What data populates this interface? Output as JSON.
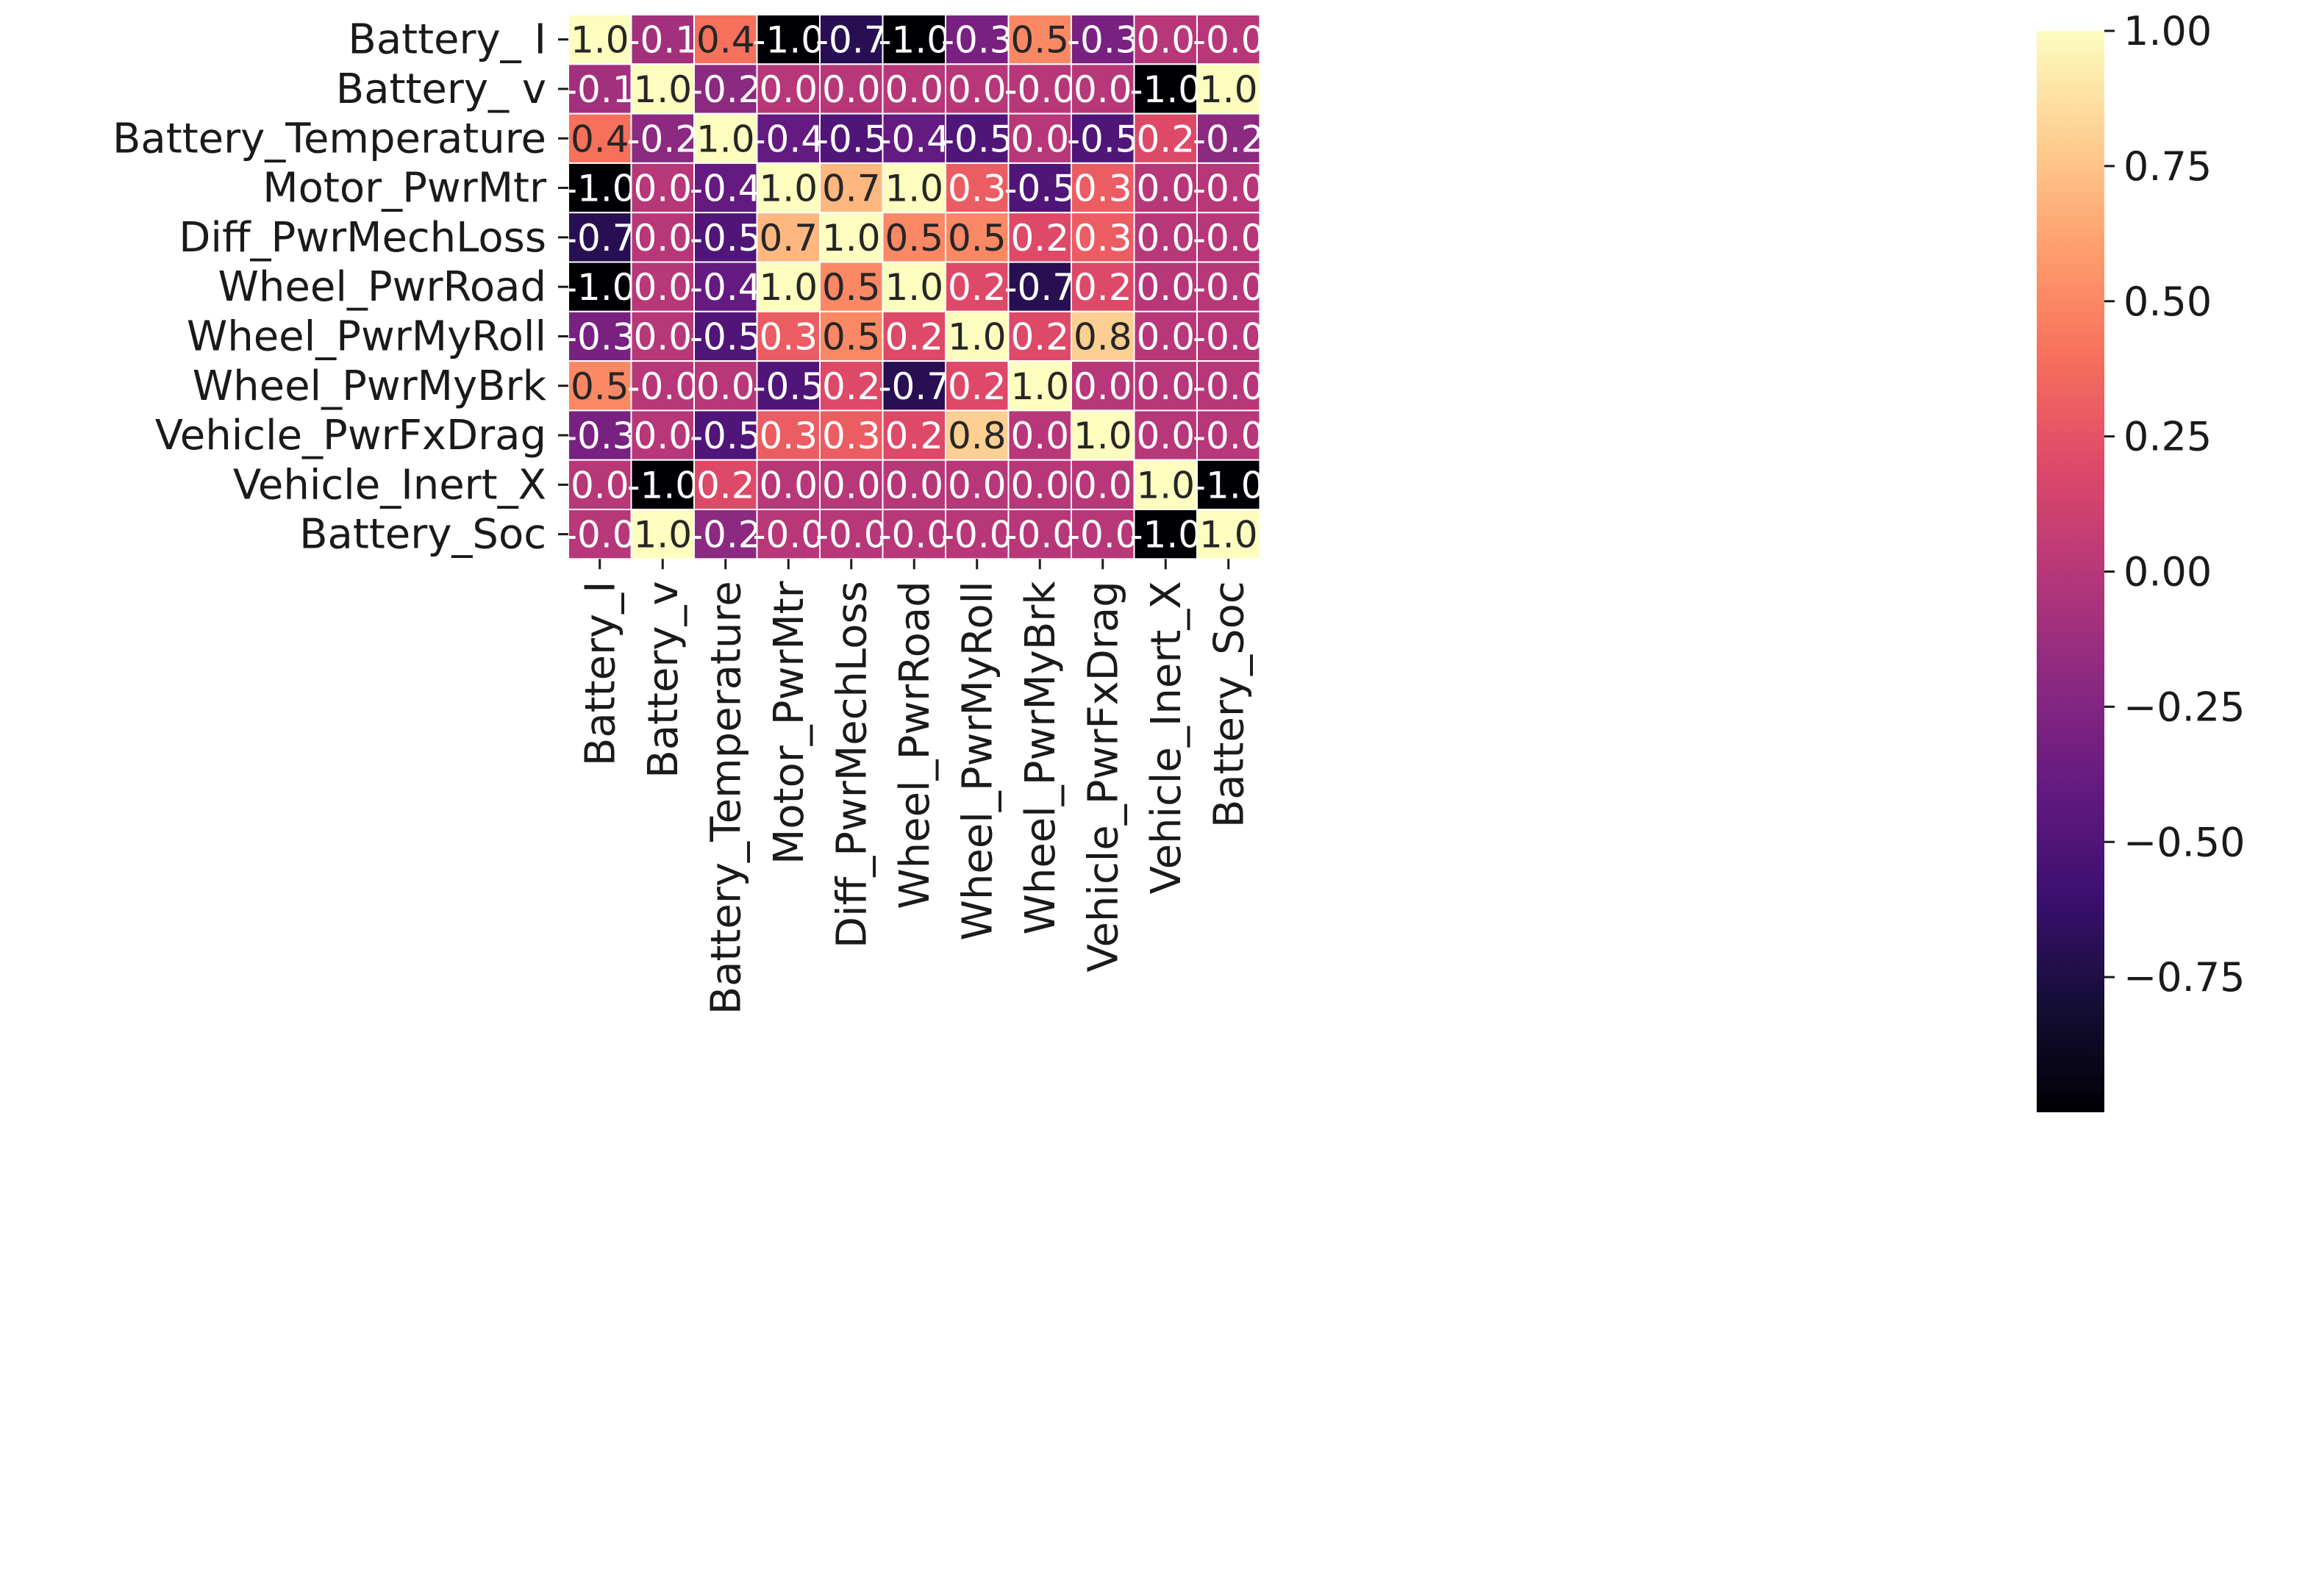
{
  "chart_data": {
    "type": "heatmap",
    "colormap": "magma",
    "vmin": -1.0,
    "vmax": 1.0,
    "grid_lines": "white",
    "row_labels": [
      "Battery_ I",
      "Battery_ v",
      "Battery_Temperature",
      "Motor_PwrMtr",
      "Diff_PwrMechLoss",
      "Wheel_PwrRoad",
      "Wheel_PwrMyRoll",
      "Wheel_PwrMyBrk",
      "Vehicle_PwrFxDrag",
      "Vehicle_Inert_X",
      "Battery_Soc"
    ],
    "column_labels": [
      "Battery_I",
      "Battery_v",
      "Battery_Temperature",
      "Motor_PwrMtr",
      "Diff_PwrMechLoss",
      "Wheel_PwrRoad",
      "Wheel_PwrMyRoll",
      "Wheel_PwrMyBrk",
      "Vehicle_PwrFxDrag",
      "Vehicle_Inert_X",
      "Battery_Soc"
    ],
    "values": [
      [
        1.0,
        -0.1,
        0.4,
        -1.0,
        -0.7,
        -1.0,
        -0.3,
        0.5,
        -0.3,
        0.0,
        -0.0
      ],
      [
        -0.1,
        1.0,
        -0.2,
        0.0,
        0.0,
        0.0,
        0.0,
        -0.0,
        0.0,
        -1.0,
        1.0
      ],
      [
        0.4,
        -0.2,
        1.0,
        -0.4,
        -0.5,
        -0.4,
        -0.5,
        0.0,
        -0.5,
        0.2,
        -0.2
      ],
      [
        -1.0,
        0.0,
        -0.4,
        1.0,
        0.7,
        1.0,
        0.3,
        -0.5,
        0.3,
        0.0,
        -0.0
      ],
      [
        -0.7,
        0.0,
        -0.5,
        0.7,
        1.0,
        0.5,
        0.5,
        0.2,
        0.3,
        0.0,
        -0.0
      ],
      [
        -1.0,
        0.0,
        -0.4,
        1.0,
        0.5,
        1.0,
        0.2,
        -0.7,
        0.2,
        0.0,
        -0.0
      ],
      [
        -0.3,
        0.0,
        -0.5,
        0.3,
        0.5,
        0.2,
        1.0,
        0.2,
        0.8,
        0.0,
        -0.0
      ],
      [
        0.5,
        -0.0,
        0.0,
        -0.5,
        0.2,
        -0.7,
        0.2,
        1.0,
        0.0,
        0.0,
        -0.0
      ],
      [
        -0.3,
        0.0,
        -0.5,
        0.3,
        0.3,
        0.2,
        0.8,
        0.0,
        1.0,
        0.0,
        -0.0
      ],
      [
        0.0,
        -1.0,
        0.2,
        0.0,
        0.0,
        0.0,
        0.0,
        0.0,
        0.0,
        1.0,
        -1.0
      ],
      [
        -0.0,
        1.0,
        -0.2,
        -0.0,
        -0.0,
        -0.0,
        -0.0,
        -0.0,
        -0.0,
        -1.0,
        1.0
      ]
    ],
    "cell_labels": [
      [
        "1.0",
        "-0.1",
        "0.4",
        "-1.0",
        "-0.7",
        "-1.0",
        "-0.3",
        "0.5",
        "-0.3",
        "0.0",
        "-0.0"
      ],
      [
        "-0.1",
        "1.0",
        "-0.2",
        "0.0",
        "0.0",
        "0.0",
        "0.0",
        "-0.0",
        "0.0",
        "-1.0",
        "1.0"
      ],
      [
        "0.4",
        "-0.2",
        "1.0",
        "-0.4",
        "-0.5",
        "-0.4",
        "-0.5",
        "0.0",
        "-0.5",
        "0.2",
        "-0.2"
      ],
      [
        "-1.0",
        "0.0",
        "-0.4",
        "1.0",
        "0.7",
        "1.0",
        "0.3",
        "-0.5",
        "0.3",
        "0.0",
        "-0.0"
      ],
      [
        "-0.7",
        "0.0",
        "-0.5",
        "0.7",
        "1.0",
        "0.5",
        "0.5",
        "0.2",
        "0.3",
        "0.0",
        "-0.0"
      ],
      [
        "-1.0",
        "0.0",
        "-0.4",
        "1.0",
        "0.5",
        "1.0",
        "0.2",
        "-0.7",
        "0.2",
        "0.0",
        "-0.0"
      ],
      [
        "-0.3",
        "0.0",
        "-0.5",
        "0.3",
        "0.5",
        "0.2",
        "1.0",
        "0.2",
        "0.8",
        "0.0",
        "-0.0"
      ],
      [
        "0.5",
        "-0.0",
        "0.0",
        "-0.5",
        "0.2",
        "-0.7",
        "0.2",
        "1.0",
        "0.0",
        "0.0",
        "-0.0"
      ],
      [
        "-0.3",
        "0.0",
        "-0.5",
        "0.3",
        "0.3",
        "0.2",
        "0.8",
        "0.0",
        "1.0",
        "0.0",
        "-0.0"
      ],
      [
        "0.0",
        "-1.0",
        "0.2",
        "0.0",
        "0.0",
        "0.0",
        "0.0",
        "0.0",
        "0.0",
        "1.0",
        "-1.0"
      ],
      [
        "-0.0",
        "1.0",
        "-0.2",
        "-0.0",
        "-0.0",
        "-0.0",
        "-0.0",
        "-0.0",
        "-0.0",
        "-1.0",
        "1.0"
      ]
    ],
    "colorbar": {
      "ticks": [
        1.0,
        0.75,
        0.5,
        0.25,
        0.0,
        -0.25,
        -0.5,
        -0.75
      ],
      "tick_labels": [
        "1.00",
        "0.75",
        "0.50",
        "0.25",
        "0.00",
        "−0.25",
        "−0.50",
        "−0.75"
      ],
      "range": [
        -1.0,
        1.0
      ]
    }
  }
}
